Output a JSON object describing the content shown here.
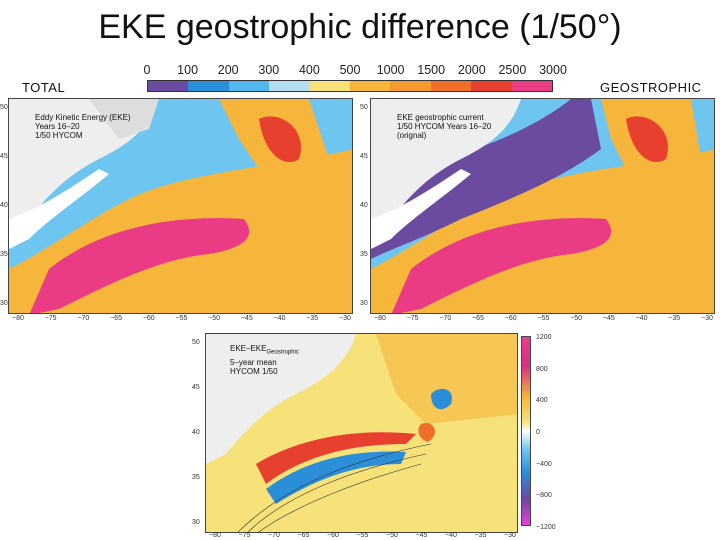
{
  "slide": {
    "title": "EKE geostrophic difference (1/50°)",
    "left_label": "TOTAL",
    "right_label": "GEOSTROPHIC"
  },
  "colorbar": {
    "ticks": [
      "0",
      "100",
      "200",
      "300",
      "400",
      "500",
      "1000",
      "1500",
      "2000",
      "2500",
      "3000"
    ],
    "colors": [
      "#6a4ba0",
      "#2a8fd8",
      "#52b8ec",
      "#b6def2",
      "#f7e27a",
      "#f6b63c",
      "#f59a2e",
      "#ef6f2a",
      "#e8402f",
      "#ea3b85"
    ]
  },
  "panels": {
    "total": {
      "caption": "Eddy Kinetic Energy (EKE)\nYears 16–20\n1/50 HYCOM",
      "lat_labels": [
        "50",
        "45",
        "40",
        "35",
        "30"
      ],
      "lon_labels": [
        "−80",
        "−75",
        "−70",
        "−65",
        "−60",
        "−55",
        "−50",
        "−45",
        "−40",
        "−35",
        "−30"
      ]
    },
    "geostrophic": {
      "caption": "EKE geostrophic current\n1/50 HYCOM Years 16–20\n(orignal)",
      "lat_labels": [
        "50",
        "45",
        "40",
        "35",
        "30"
      ],
      "lon_labels": [
        "−80",
        "−75",
        "−70",
        "−65",
        "−60",
        "−55",
        "−50",
        "−45",
        "−40",
        "−35",
        "−30"
      ]
    },
    "difference": {
      "caption_main": "EKE–EKE",
      "caption_sub": "Geostrophic",
      "caption_rest": "5–year mean\nHYCOM 1/50",
      "lat_labels": [
        "50",
        "45",
        "40",
        "35",
        "30"
      ],
      "lon_labels": [
        "−80",
        "−75",
        "−70",
        "−65",
        "−60",
        "−55",
        "−50",
        "−45",
        "−40",
        "−35",
        "−30"
      ],
      "colorbar_labels": [
        "1200",
        "800",
        "400",
        "0",
        "−400",
        "−800",
        "−1200"
      ]
    }
  }
}
